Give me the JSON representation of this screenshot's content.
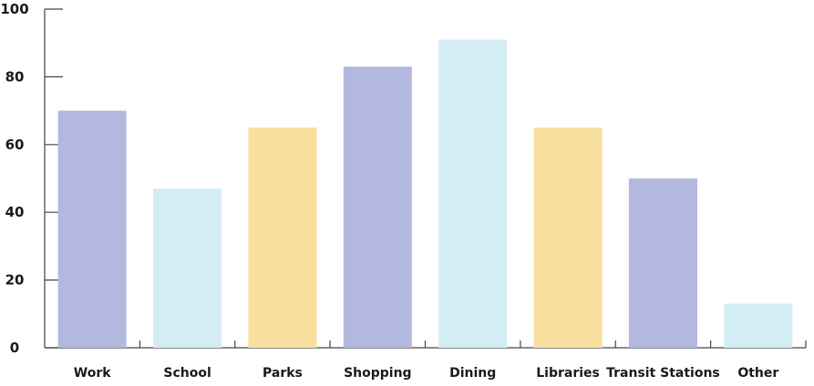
{
  "chart_data": {
    "type": "bar",
    "title": "",
    "xlabel": "",
    "ylabel": "",
    "ylim": [
      0,
      100
    ],
    "yticks": [
      0,
      20,
      40,
      60,
      80,
      100
    ],
    "ytick_labels": [
      "0",
      "20",
      "40",
      "60",
      "80",
      "100"
    ],
    "grid": false,
    "categories": [
      "Work",
      "School",
      "Parks",
      "Shopping",
      "Dining",
      "Libraries",
      "Transit Stations",
      "Other"
    ],
    "values": [
      70,
      47,
      65,
      83,
      91,
      65,
      50,
      13
    ],
    "colors": [
      "#b3b8df",
      "#d4edf4",
      "#f8df9e",
      "#b3b8df",
      "#d4edf4",
      "#f8df9e",
      "#b3b8df",
      "#d4edf4"
    ]
  }
}
